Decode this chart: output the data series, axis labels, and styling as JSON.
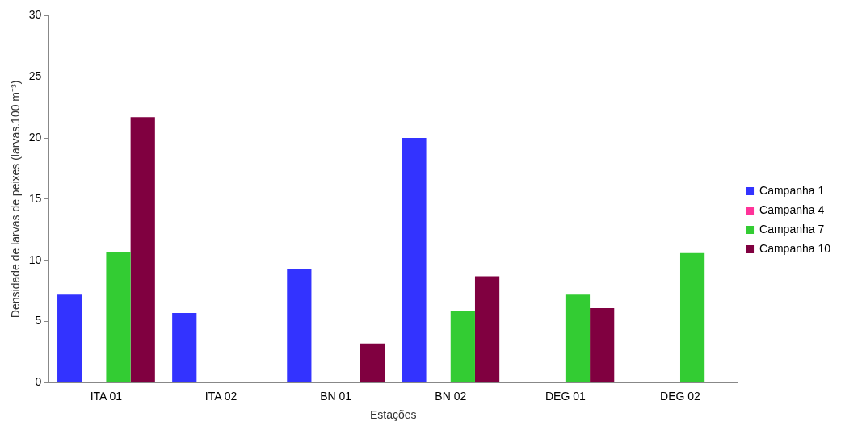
{
  "chart_data": {
    "type": "bar",
    "xlabel": "Estações",
    "ylabel": "Densidade de larvas de peixes (larvas.100 m⁻³)",
    "categories": [
      "ITA 01",
      "ITA 02",
      "BN 01",
      "BN 02",
      "DEG 01",
      "DEG 02"
    ],
    "series": [
      {
        "name": "Campanha 1",
        "color": "#3333ff",
        "values": [
          7.2,
          5.7,
          9.3,
          20.0,
          0,
          0
        ]
      },
      {
        "name": "Campanha 4",
        "color": "#ff3399",
        "values": [
          0,
          0,
          0,
          0,
          0,
          0
        ]
      },
      {
        "name": "Campanha 7",
        "color": "#33cc33",
        "values": [
          10.7,
          0,
          0,
          5.9,
          7.2,
          10.6
        ]
      },
      {
        "name": "Campanha 10",
        "color": "#800040",
        "values": [
          21.7,
          0,
          3.2,
          8.7,
          6.1,
          0
        ]
      }
    ],
    "ylim": [
      0,
      30
    ],
    "yticks": [
      0,
      5,
      10,
      15,
      20,
      25,
      30
    ],
    "grid": false,
    "legend": "right"
  }
}
